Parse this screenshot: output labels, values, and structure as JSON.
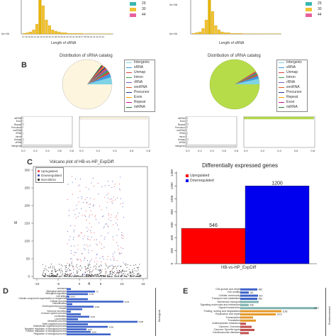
{
  "panelA": {
    "left": {
      "x_label": "Length of sRNA",
      "y_tick_zero": "0e+00",
      "legend_nums": [
        "29",
        "30",
        "44"
      ],
      "legend_colors": [
        "#39b7b0",
        "#f2c232",
        "#e85f9e"
      ],
      "x_ticks": "17 18 19 20 21 22 23 24 25 26 27 28 29 30 31 32 33 34 35 36 37 38 39 40 41 42 43 44"
    },
    "right": {
      "x_label": "Length of sRNA",
      "y_tick_top": "2e+06",
      "y_tick_zero": "0e+00",
      "legend_nums": [
        "29",
        "30",
        "44"
      ],
      "legend_colors": [
        "#39b7b0",
        "#f2c232",
        "#e85f9e"
      ]
    }
  },
  "panelB": {
    "letter": "B",
    "left": {
      "title": "Distribution of sRNA catalog",
      "legend": [
        "Intergenic",
        "sRNA",
        "Unmap",
        "Intron",
        "rRNA",
        "snoRNA",
        "Precursor",
        "Exon",
        "Repeat",
        "miRNA"
      ],
      "bar_labels": [
        "miRNA",
        "Exon",
        "Repeat",
        "Precursor",
        "snoRNA",
        "rRNA",
        "Intron",
        "Unmap",
        "sRNA",
        "Intergenic"
      ],
      "x_ticks": [
        "0.0",
        "0.2",
        "0.4",
        "0.6",
        "0.8"
      ]
    },
    "right": {
      "title": "Distribution of sRNA catalog",
      "legend": [
        "Intergenic",
        "sRNA",
        "Unmap",
        "Intron",
        "rRNA",
        "snoRNA",
        "Precursor",
        "Repeat",
        "Exon",
        "miRNA"
      ],
      "bar_labels": [
        "miRNA",
        "Exon",
        "Repeat",
        "Precursor",
        "snoRNA",
        "rRNA",
        "Intron",
        "Unmap",
        "sRNA",
        "Intergenic"
      ],
      "x_ticks": [
        "0.0",
        "0.2",
        "0.4",
        "0.6",
        "0.8"
      ]
    },
    "legend_colors": [
      "#7fd3e6",
      "#3d9be0",
      "#d94040",
      "#43a047",
      "#7e57c2",
      "#e4572e",
      "#1f3a93",
      "#f4a300",
      "#c71585",
      "#2e7d32"
    ]
  },
  "panelC": {
    "letter": "C",
    "volcano": {
      "title": "Volcano plot of HB-vs-HP_ExpDiff",
      "xlabel": "A",
      "ylabel": "M",
      "legend": [
        {
          "label": "Upregulated",
          "color": "#e8333a"
        },
        {
          "label": "Downregulated",
          "color": "#2d3bb8"
        },
        {
          "label": "Non-DEGs",
          "color": "#111111"
        }
      ],
      "x_ticks": [
        "-10",
        "-5",
        "0",
        "5",
        "10",
        "15"
      ],
      "y_ticks": [
        "0",
        "50",
        "100",
        "150",
        "200",
        "250",
        "300"
      ]
    },
    "bar": {
      "title": "Differentially expressed genes",
      "legend": [
        {
          "label": "Upregulated",
          "color": "#ff0000"
        },
        {
          "label": "Downregulated",
          "color": "#0000ee"
        }
      ],
      "y_ticks": [
        "0",
        "200",
        "400",
        "600",
        "800",
        "1000",
        "1200",
        "1400"
      ],
      "xlabel": "HB-vs-HP_ExpDiff"
    }
  },
  "chart_data": [
    {
      "type": "bar",
      "title": "Differentially expressed genes",
      "categories": [
        "HB-vs-HP_ExpDiff"
      ],
      "series": [
        {
          "name": "Upregulated",
          "values": [
            546
          ]
        },
        {
          "name": "Downregulated",
          "values": [
            1200
          ]
        }
      ],
      "xlabel": "",
      "ylabel": "",
      "ylim": [
        0,
        1400
      ],
      "data_labels": [
        "546",
        "1200"
      ]
    }
  ],
  "panelD": {
    "letter": "D",
    "terms": [
      "Behavior",
      "Biological adhesion",
      "Biological regulation",
      "Cell killing",
      "Cellular component organization or biogenesis",
      "Cellular process",
      "Detoxification",
      "Developmental process",
      "Growth",
      "Hormone secretion",
      "Immune system process",
      "Localization",
      "Locomotion",
      "Metabolic process",
      "Multi-organism process",
      "Multicellular organismal process",
      "Negative regulation of biological process",
      "Positive regulation of biological process",
      "Regulation of biological process"
    ],
    "values": [
      "72",
      "2730",
      "6841",
      "5278",
      "4499",
      "3340",
      "6305",
      "4495",
      "1870",
      "1820"
    ],
    "side_label": "Biological"
  },
  "panelE": {
    "letter": "E",
    "terms": [
      "Cell growth and death",
      "Cell motility",
      "Cellular community",
      "Transport and catabolism",
      "Membrane transport",
      "Signaling molecules and interaction",
      "Signal transduction",
      "Folding, sorting and degradation",
      "Replication and repair",
      "Transcription",
      "Translation",
      "Antineoplastic resistance",
      "Cancers: Overview",
      "Cancers: Specific types",
      "Cardiovascular diseases"
    ],
    "values": [
      "486",
      "181",
      "507",
      "483",
      "546",
      "2227",
      "1196",
      "1019"
    ],
    "side_label": "Environmental"
  }
}
